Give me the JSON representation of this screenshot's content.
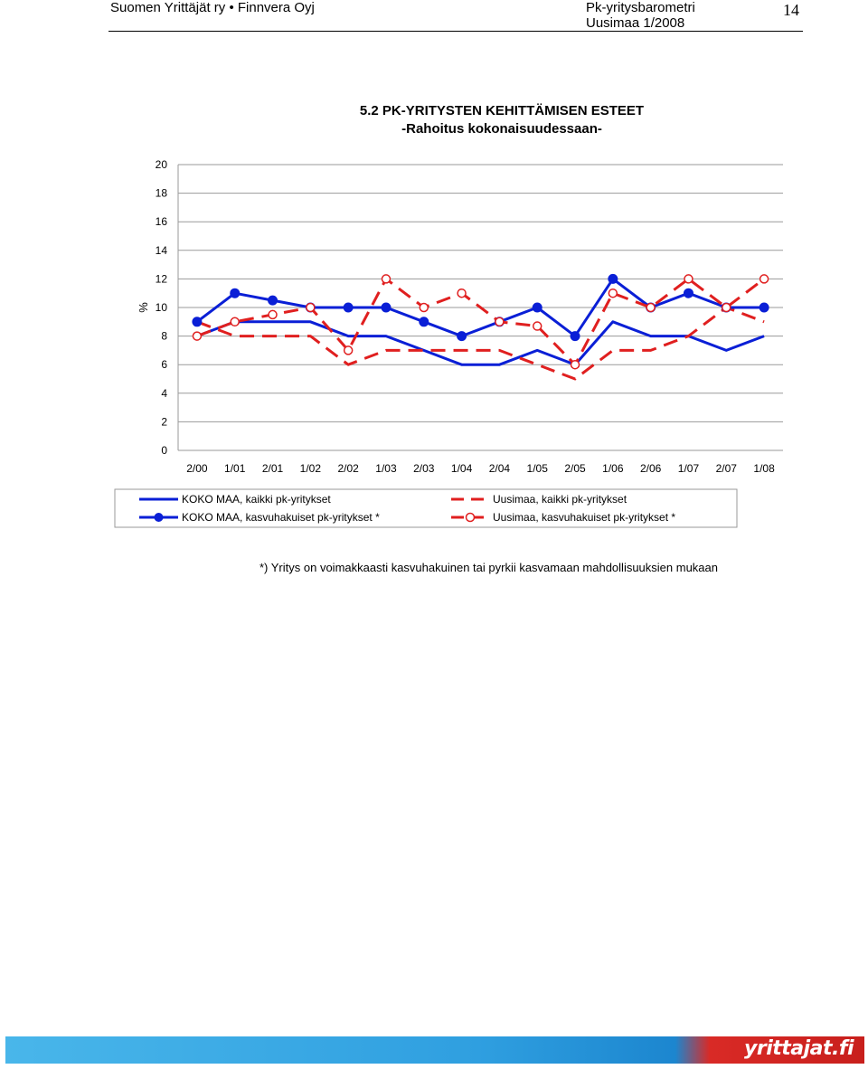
{
  "header": {
    "left": "Suomen Yrittäjät ry • Finnvera Oyj",
    "right_line1": "Pk-yritysbarometri",
    "right_line2": "Uusimaa 1/2008",
    "page_number": "14"
  },
  "chart_data": {
    "type": "line",
    "title": "5.2 PK-YRITYSTEN KEHITTÄMISEN ESTEET",
    "subtitle": "-Rahoitus kokonaisuudessaan-",
    "ylabel": "%",
    "ylim": [
      0,
      20
    ],
    "yticks": [
      0,
      2,
      4,
      6,
      8,
      10,
      12,
      14,
      16,
      18,
      20
    ],
    "categories": [
      "2/00",
      "1/01",
      "2/01",
      "1/02",
      "2/02",
      "1/03",
      "2/03",
      "1/04",
      "2/04",
      "1/05",
      "2/05",
      "1/06",
      "2/06",
      "1/07",
      "2/07",
      "1/08"
    ],
    "grid": "horizontal",
    "legend": "bottom",
    "series": [
      {
        "name": "KOKO MAA, kaikki pk-yritykset",
        "color": "#0a1fd6",
        "style": "solid",
        "marker": "none",
        "values": [
          8,
          9,
          9,
          9,
          8,
          8,
          7,
          6,
          6,
          7,
          6,
          9,
          8,
          8,
          7,
          8
        ]
      },
      {
        "name": "KOKO MAA, kasvuhakuiset pk-yritykset *",
        "color": "#0a1fd6",
        "style": "solid",
        "marker": "filled-circle",
        "values": [
          9,
          11,
          10.5,
          10,
          10,
          10,
          9,
          8,
          9,
          10,
          8,
          12,
          10,
          11,
          10,
          10
        ]
      },
      {
        "name": "Uusimaa, kaikki pk-yritykset",
        "color": "#e01f1f",
        "style": "dashed",
        "marker": "none",
        "values": [
          9,
          8,
          8,
          8,
          6,
          7,
          7,
          7,
          7,
          6,
          5,
          7,
          7,
          8,
          10,
          9
        ]
      },
      {
        "name": "Uusimaa, kasvuhakuiset pk-yritykset *",
        "color": "#e01f1f",
        "style": "dashed",
        "marker": "open-circle",
        "values": [
          8,
          9,
          9.5,
          10,
          7,
          12,
          10,
          11,
          9,
          8.7,
          6,
          11,
          10,
          12,
          10,
          12
        ]
      }
    ]
  },
  "footnote": "*) Yritys on voimakkaasti kasvuhakuinen tai pyrkii kasvamaan mahdollisuuksien mukaan",
  "footer": {
    "logo_text": "yrittajat.fi"
  }
}
